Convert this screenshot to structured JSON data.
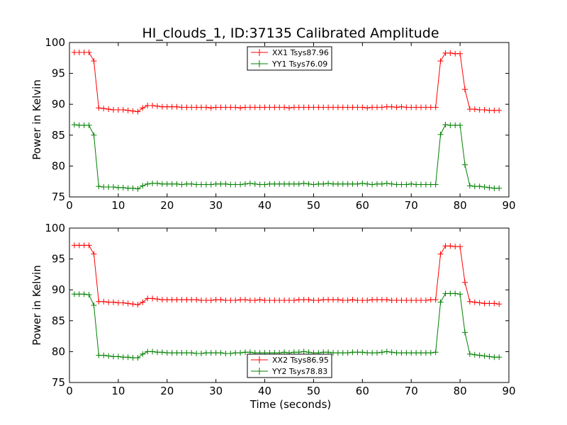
{
  "chart_data": [
    {
      "type": "line",
      "title": "HI_clouds_1, ID:37135 Calibrated Amplitude",
      "xlabel": "",
      "ylabel": "Power in Kelvin",
      "xlim": [
        0,
        90
      ],
      "ylim": [
        75,
        100
      ],
      "xticks": [
        "0",
        "10",
        "20",
        "30",
        "40",
        "50",
        "60",
        "70",
        "80",
        "90"
      ],
      "yticks": [
        "75",
        "80",
        "85",
        "90",
        "95",
        "100"
      ],
      "grid": false,
      "legend_position": "top-center",
      "x": [
        1,
        2,
        3,
        4,
        5,
        6,
        7,
        8,
        9,
        10,
        11,
        12,
        13,
        14,
        15,
        16,
        17,
        18,
        19,
        20,
        21,
        22,
        23,
        24,
        25,
        26,
        27,
        28,
        29,
        30,
        31,
        32,
        33,
        34,
        35,
        36,
        37,
        38,
        39,
        40,
        41,
        42,
        43,
        44,
        45,
        46,
        47,
        48,
        49,
        50,
        51,
        52,
        53,
        54,
        55,
        56,
        57,
        58,
        59,
        60,
        61,
        62,
        63,
        64,
        65,
        66,
        67,
        68,
        69,
        70,
        71,
        72,
        73,
        74,
        75,
        76,
        77,
        78,
        79,
        80,
        81,
        82,
        83,
        84,
        85,
        86,
        87,
        88
      ],
      "series": [
        {
          "name": "XX1 Tsys87.96",
          "color": "#ff0000",
          "values": [
            98.4,
            98.4,
            98.4,
            98.4,
            97.0,
            89.4,
            89.3,
            89.2,
            89.1,
            89.1,
            89.1,
            89.0,
            88.9,
            88.8,
            89.4,
            89.8,
            89.8,
            89.7,
            89.6,
            89.6,
            89.6,
            89.6,
            89.5,
            89.5,
            89.5,
            89.5,
            89.5,
            89.5,
            89.4,
            89.5,
            89.5,
            89.5,
            89.5,
            89.5,
            89.4,
            89.5,
            89.5,
            89.5,
            89.5,
            89.5,
            89.5,
            89.5,
            89.5,
            89.5,
            89.4,
            89.5,
            89.5,
            89.5,
            89.5,
            89.5,
            89.5,
            89.5,
            89.5,
            89.5,
            89.5,
            89.5,
            89.5,
            89.5,
            89.5,
            89.5,
            89.4,
            89.5,
            89.5,
            89.5,
            89.6,
            89.6,
            89.5,
            89.6,
            89.5,
            89.5,
            89.5,
            89.5,
            89.5,
            89.5,
            89.5,
            97.0,
            98.3,
            98.3,
            98.2,
            98.2,
            92.4,
            89.2,
            89.2,
            89.1,
            89.1,
            89.0,
            89.0,
            89.0
          ]
        },
        {
          "name": "YY1 Tsys76.09",
          "color": "#008000",
          "values": [
            86.7,
            86.6,
            86.6,
            86.6,
            85.0,
            76.7,
            76.6,
            76.6,
            76.6,
            76.5,
            76.5,
            76.4,
            76.4,
            76.3,
            76.8,
            77.1,
            77.2,
            77.2,
            77.1,
            77.1,
            77.1,
            77.1,
            77.0,
            77.1,
            77.1,
            77.0,
            77.0,
            77.0,
            77.0,
            77.1,
            77.1,
            77.1,
            77.0,
            77.0,
            77.0,
            77.1,
            77.2,
            77.1,
            77.0,
            77.0,
            77.1,
            77.1,
            77.1,
            77.1,
            77.1,
            77.1,
            77.1,
            77.2,
            77.1,
            77.0,
            77.1,
            77.1,
            77.2,
            77.1,
            77.1,
            77.1,
            77.1,
            77.1,
            77.1,
            77.2,
            77.1,
            77.0,
            77.1,
            77.1,
            77.2,
            77.1,
            77.0,
            77.0,
            77.0,
            77.1,
            77.0,
            77.0,
            77.0,
            77.0,
            77.0,
            85.1,
            86.7,
            86.6,
            86.6,
            86.6,
            80.2,
            76.8,
            76.7,
            76.7,
            76.6,
            76.5,
            76.4,
            76.4
          ]
        }
      ]
    },
    {
      "type": "line",
      "title": "",
      "xlabel": "Time (seconds)",
      "ylabel": "Power in Kelvin",
      "xlim": [
        0,
        90
      ],
      "ylim": [
        75,
        100
      ],
      "xticks": [
        "0",
        "10",
        "20",
        "30",
        "40",
        "50",
        "60",
        "70",
        "80",
        "90"
      ],
      "yticks": [
        "75",
        "80",
        "85",
        "90",
        "95",
        "100"
      ],
      "grid": false,
      "legend_position": "bottom-center",
      "x": [
        1,
        2,
        3,
        4,
        5,
        6,
        7,
        8,
        9,
        10,
        11,
        12,
        13,
        14,
        15,
        16,
        17,
        18,
        19,
        20,
        21,
        22,
        23,
        24,
        25,
        26,
        27,
        28,
        29,
        30,
        31,
        32,
        33,
        34,
        35,
        36,
        37,
        38,
        39,
        40,
        41,
        42,
        43,
        44,
        45,
        46,
        47,
        48,
        49,
        50,
        51,
        52,
        53,
        54,
        55,
        56,
        57,
        58,
        59,
        60,
        61,
        62,
        63,
        64,
        65,
        66,
        67,
        68,
        69,
        70,
        71,
        72,
        73,
        74,
        75,
        76,
        77,
        78,
        79,
        80,
        81,
        82,
        83,
        84,
        85,
        86,
        87,
        88
      ],
      "series": [
        {
          "name": "XX2 Tsys86.95",
          "color": "#ff0000",
          "values": [
            97.2,
            97.2,
            97.2,
            97.2,
            95.8,
            88.1,
            88.1,
            88.0,
            88.0,
            87.9,
            87.9,
            87.8,
            87.7,
            87.6,
            88.0,
            88.6,
            88.6,
            88.5,
            88.4,
            88.4,
            88.4,
            88.4,
            88.4,
            88.4,
            88.4,
            88.4,
            88.3,
            88.3,
            88.3,
            88.4,
            88.4,
            88.3,
            88.3,
            88.3,
            88.4,
            88.4,
            88.3,
            88.3,
            88.4,
            88.3,
            88.3,
            88.3,
            88.3,
            88.3,
            88.3,
            88.3,
            88.4,
            88.4,
            88.4,
            88.3,
            88.3,
            88.4,
            88.4,
            88.4,
            88.4,
            88.3,
            88.3,
            88.4,
            88.3,
            88.3,
            88.3,
            88.4,
            88.4,
            88.4,
            88.4,
            88.3,
            88.3,
            88.3,
            88.3,
            88.3,
            88.3,
            88.3,
            88.3,
            88.4,
            88.4,
            95.8,
            97.1,
            97.1,
            97.0,
            97.0,
            91.2,
            88.1,
            88.0,
            87.9,
            87.8,
            87.8,
            87.8,
            87.7
          ]
        },
        {
          "name": "YY2 Tsys78.83",
          "color": "#008000",
          "values": [
            89.3,
            89.3,
            89.3,
            89.2,
            87.5,
            79.4,
            79.4,
            79.3,
            79.2,
            79.2,
            79.1,
            79.1,
            79.0,
            79.0,
            79.6,
            80.0,
            80.0,
            79.9,
            79.9,
            79.8,
            79.8,
            79.8,
            79.8,
            79.8,
            79.8,
            79.7,
            79.7,
            79.8,
            79.8,
            79.8,
            79.8,
            79.7,
            79.7,
            79.8,
            79.8,
            79.9,
            79.9,
            79.8,
            79.8,
            79.8,
            79.8,
            79.8,
            79.8,
            79.9,
            79.8,
            79.9,
            79.9,
            80.0,
            79.9,
            79.8,
            79.8,
            79.9,
            79.9,
            79.8,
            79.8,
            79.8,
            79.8,
            79.9,
            79.9,
            79.9,
            79.8,
            79.8,
            79.8,
            79.9,
            80.0,
            79.9,
            79.8,
            79.8,
            79.8,
            79.8,
            79.8,
            79.8,
            79.8,
            79.8,
            79.9,
            88.0,
            89.4,
            89.4,
            89.4,
            89.3,
            83.1,
            79.6,
            79.5,
            79.4,
            79.3,
            79.2,
            79.1,
            79.1
          ]
        }
      ]
    }
  ]
}
